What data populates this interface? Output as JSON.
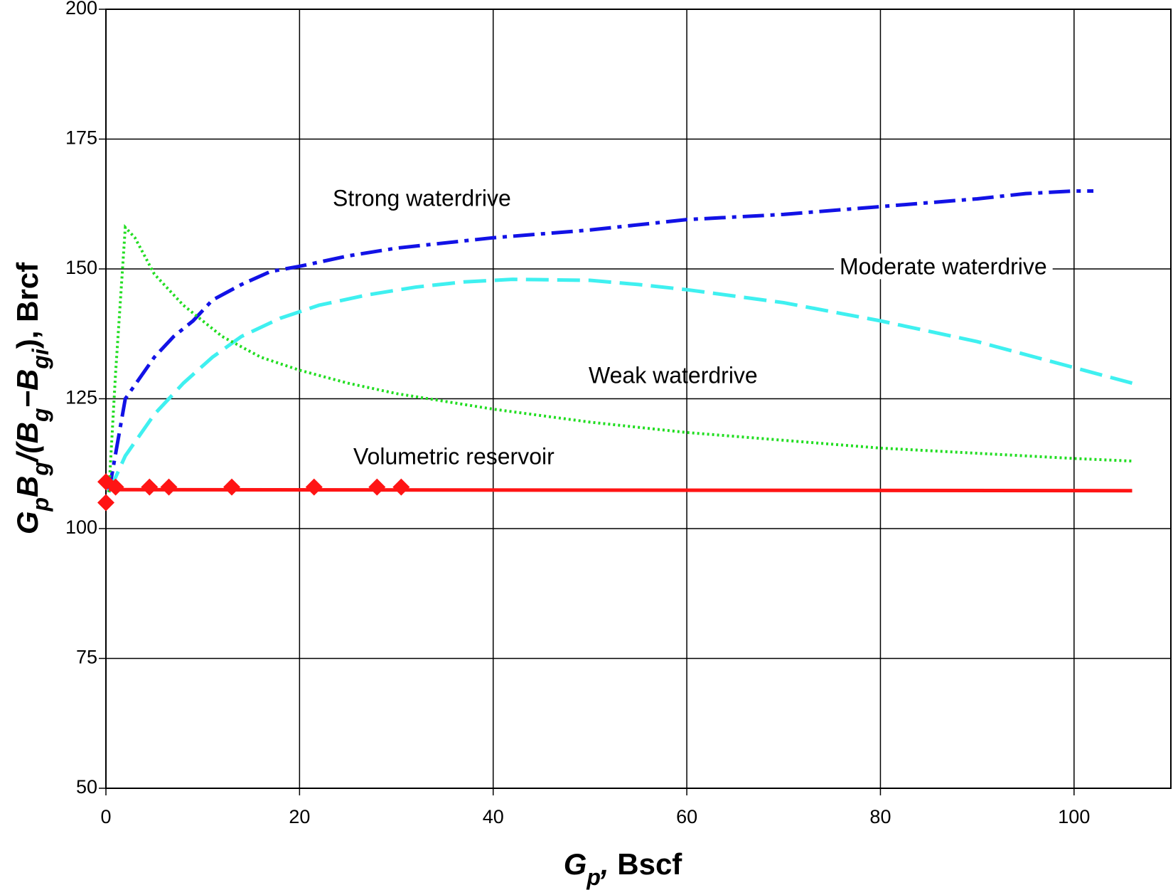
{
  "chart_data": {
    "type": "line",
    "x_label": [
      {
        "text": "G",
        "italic": true
      },
      {
        "text": "p",
        "italic": true,
        "sub": true
      },
      {
        "text": ",",
        "italic": true
      },
      {
        "text": " Bscf"
      }
    ],
    "y_label": [
      {
        "text": "G",
        "italic": true
      },
      {
        "text": "p",
        "italic": true,
        "sub": true
      },
      {
        "text": "B",
        "italic": true
      },
      {
        "text": "g",
        "italic": true,
        "sub": true
      },
      {
        "text": "/(",
        "italic": true
      },
      {
        "text": "B",
        "italic": true
      },
      {
        "text": "g",
        "italic": true,
        "sub": true
      },
      {
        "text": "−",
        "italic": true
      },
      {
        "text": "B",
        "italic": true
      },
      {
        "text": "gi",
        "italic": true,
        "sub": true
      },
      {
        "text": "), Brcf"
      }
    ],
    "xlim": [
      0,
      110
    ],
    "xticks": [
      0,
      20,
      40,
      60,
      80,
      100
    ],
    "ylim": [
      50,
      200
    ],
    "yticks": [
      50,
      75,
      100,
      125,
      150,
      175,
      200
    ],
    "grid": true,
    "series": [
      {
        "name": "Strong waterdrive",
        "color": "#1212e6",
        "dash": "30,9,6,9",
        "x": [
          0.3,
          2,
          5,
          7,
          9,
          11,
          14,
          17,
          20,
          25,
          30,
          40,
          50,
          60,
          70,
          80,
          90,
          95,
          100,
          102
        ],
        "values": [
          107,
          125,
          133,
          137,
          140,
          144,
          147,
          149.5,
          150.5,
          152.5,
          154,
          156,
          157.5,
          159.5,
          160.5,
          162,
          163.5,
          164.5,
          165,
          165
        ]
      },
      {
        "name": "Moderate waterdrive",
        "color": "#3ff0f0",
        "dash": "32,12",
        "x": [
          0.3,
          2,
          5,
          8,
          11,
          14,
          18,
          22,
          27,
          32,
          37,
          42,
          50,
          55,
          60,
          70,
          80,
          90,
          100,
          106
        ],
        "values": [
          107,
          114,
          122,
          128,
          133,
          137,
          140.5,
          143,
          145,
          146.5,
          147.5,
          148,
          147.8,
          147,
          146,
          143.5,
          140,
          136,
          131,
          128
        ]
      },
      {
        "name": "Weak waterdrive",
        "color": "#22dd22",
        "dash": "3,4",
        "x": [
          0.3,
          1,
          2,
          3,
          5,
          8,
          12,
          16,
          20,
          25,
          30,
          40,
          50,
          60,
          70,
          80,
          90,
          100,
          106
        ],
        "values": [
          107,
          130,
          158,
          156,
          149,
          143,
          137,
          133,
          130.5,
          128,
          126,
          123,
          120.5,
          118.5,
          117,
          115.5,
          114.5,
          113.5,
          113
        ]
      },
      {
        "name": "Volumetric reservoir",
        "color": "#ff1414",
        "dash": "",
        "x": [
          0.3,
          106
        ],
        "values": [
          107.5,
          107.3
        ],
        "marker_x": [
          0,
          0,
          1,
          4.5,
          6.5,
          13,
          21.5,
          28,
          30.5
        ],
        "marker_values": [
          105,
          109,
          108,
          108,
          108,
          108,
          108,
          108,
          108
        ]
      }
    ]
  }
}
